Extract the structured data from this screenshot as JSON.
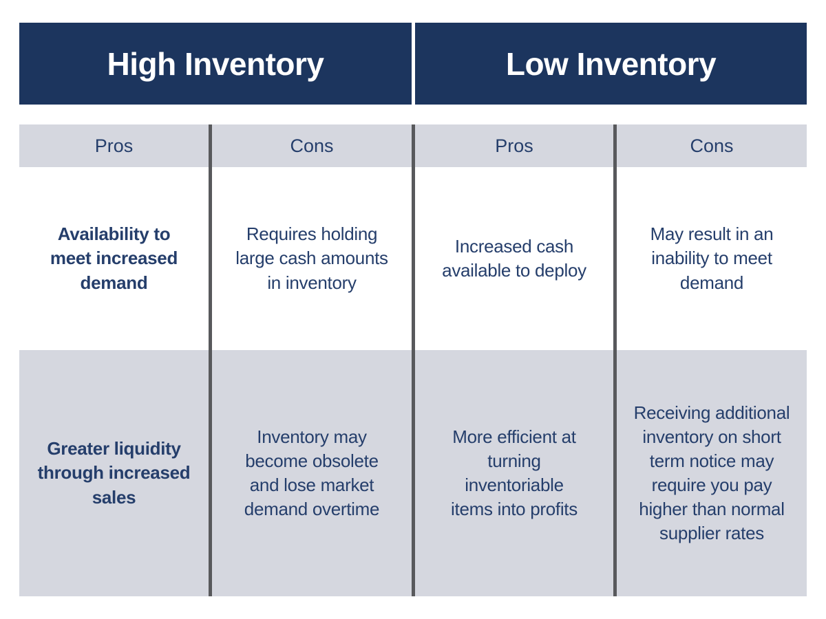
{
  "colors": {
    "header_navy": "#1c355e",
    "header_text": "#ffffff",
    "cell_gray": "#d5d7df",
    "divider_gray": "#58595c",
    "body_text_navy": "#253e6b",
    "page_background": "#ffffff"
  },
  "headers": {
    "high": "High Inventory",
    "low": "Low Inventory"
  },
  "column_labels": [
    "Pros",
    "Cons",
    "Pros",
    "Cons"
  ],
  "rows": [
    {
      "cells": [
        "Availability to\nmeet increased\ndemand",
        "Requires holding\nlarge cash amounts\nin inventory",
        "Increased cash\navailable to deploy",
        "May result in an\ninability to meet\ndemand"
      ]
    },
    {
      "cells": [
        "Greater liquidity\nthrough increased\nsales",
        "Inventory may\nbecome obsolete\nand lose market\ndemand overtime",
        "More efficient at\nturning\ninventoriable\nitems into profits",
        "Receiving additional\ninventory on short\nterm notice may\nrequire you pay\nhigher than normal\nsupplier rates"
      ]
    }
  ]
}
